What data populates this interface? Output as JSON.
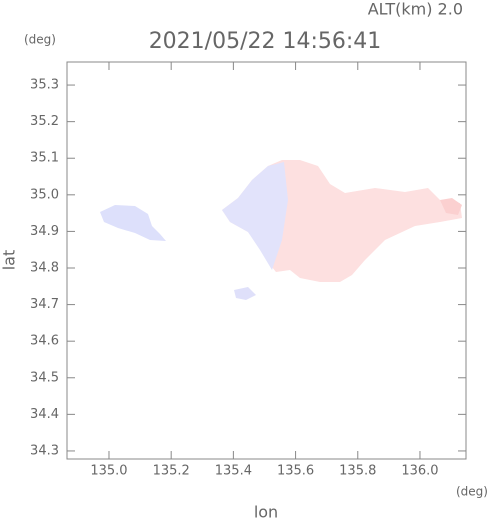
{
  "chart_data": {
    "type": "map",
    "title": "2021/05/22 14:56:41",
    "subtitle": "ALT(km) 2.0",
    "xlabel": "lon",
    "ylabel": "lat",
    "xunit": "(deg)",
    "yunit": "(deg)",
    "xlim": [
      134.865,
      136.148
    ],
    "ylim": [
      34.278,
      35.363
    ],
    "xticks": [
      {
        "value": 135,
        "label": "135.0"
      },
      135.2,
      135.4,
      135.6,
      135.8,
      {
        "value": 136,
        "label": "136.0"
      }
    ],
    "yticks": [
      34.3,
      34.4,
      34.5,
      34.6,
      34.7,
      34.8,
      34.9,
      {
        "value": 35,
        "label": "35.0"
      },
      35.1,
      35.2,
      35.3
    ]
  }
}
